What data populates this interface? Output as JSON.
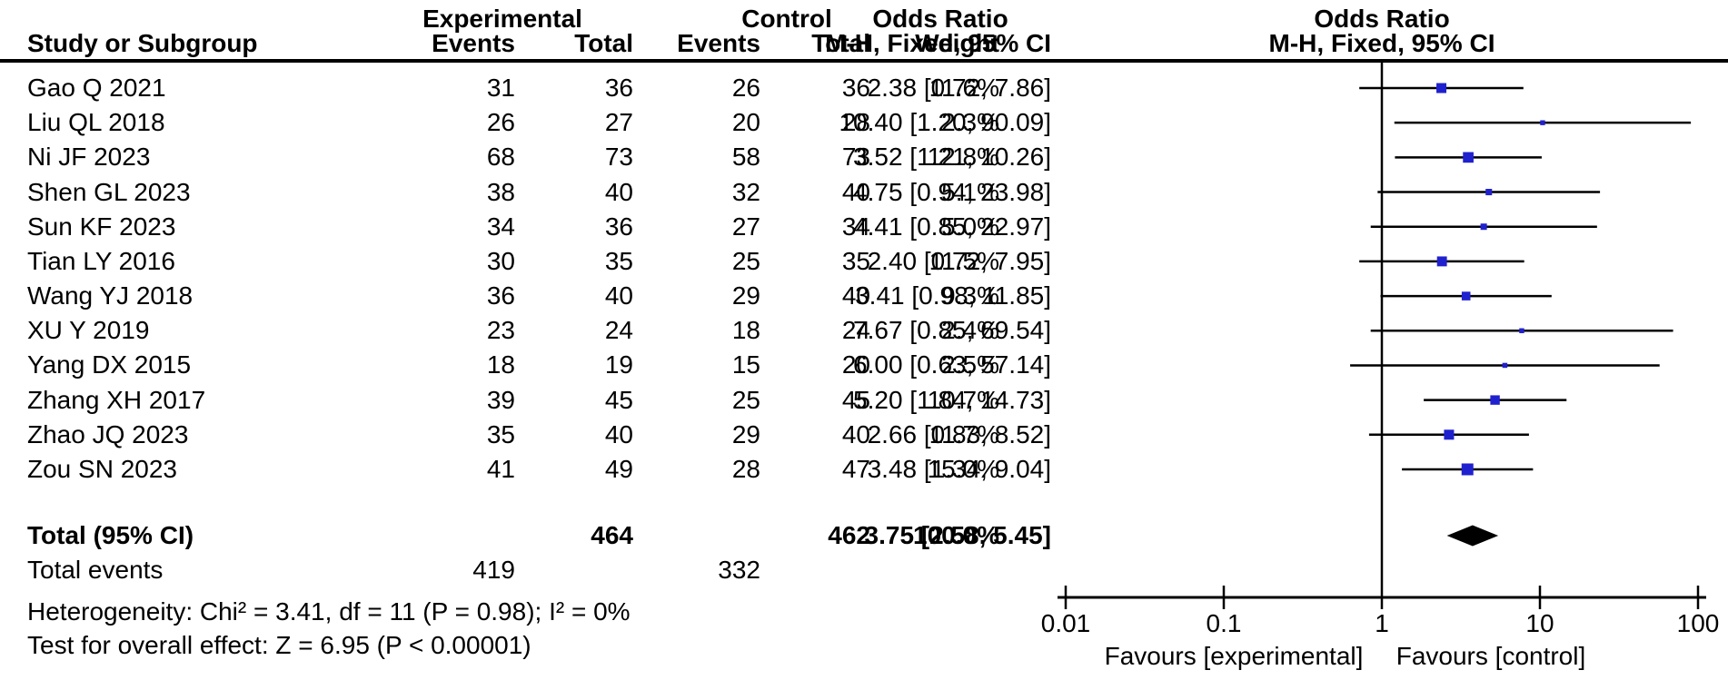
{
  "chart_data": {
    "type": "forest",
    "title": "Odds Ratio forest plot (M-H, Fixed, 95% CI)",
    "headers": {
      "study_col": "Study or Subgroup",
      "group_experimental": "Experimental",
      "group_control": "Control",
      "events": "Events",
      "total": "Total",
      "weight": "Weight",
      "or_title": "Odds Ratio",
      "or_subtitle": "M-H, Fixed, 95% CI"
    },
    "studies": [
      {
        "name": "Gao Q 2021",
        "exp_events": 31,
        "exp_total": 36,
        "ctl_events": 26,
        "ctl_total": 36,
        "weight_pct": 11.6,
        "weight_label": "11.6%",
        "or": 2.38,
        "ci_low": 0.72,
        "ci_high": 7.86,
        "or_ci_label": "2.38 [0.72, 7.86]"
      },
      {
        "name": "Liu QL 2018",
        "exp_events": 26,
        "exp_total": 27,
        "ctl_events": 20,
        "ctl_total": 28,
        "weight_pct": 2.3,
        "weight_label": "2.3%",
        "or": 10.4,
        "ci_low": 1.2,
        "ci_high": 90.09,
        "or_ci_label": "10.40 [1.20, 90.09]"
      },
      {
        "name": "Ni JF 2023",
        "exp_events": 68,
        "exp_total": 73,
        "ctl_events": 58,
        "ctl_total": 73,
        "weight_pct": 12.8,
        "weight_label": "12.8%",
        "or": 3.52,
        "ci_low": 1.21,
        "ci_high": 10.26,
        "or_ci_label": "3.52 [1.21, 10.26]"
      },
      {
        "name": "Shen GL 2023",
        "exp_events": 38,
        "exp_total": 40,
        "ctl_events": 32,
        "ctl_total": 40,
        "weight_pct": 5.1,
        "weight_label": "5.1%",
        "or": 4.75,
        "ci_low": 0.94,
        "ci_high": 23.98,
        "or_ci_label": "4.75 [0.94, 23.98]"
      },
      {
        "name": "Sun KF 2023",
        "exp_events": 34,
        "exp_total": 36,
        "ctl_events": 27,
        "ctl_total": 34,
        "weight_pct": 5.0,
        "weight_label": "5.0%",
        "or": 4.41,
        "ci_low": 0.85,
        "ci_high": 22.97,
        "or_ci_label": "4.41 [0.85, 22.97]"
      },
      {
        "name": "Tian LY 2016",
        "exp_events": 30,
        "exp_total": 35,
        "ctl_events": 25,
        "ctl_total": 35,
        "weight_pct": 11.5,
        "weight_label": "11.5%",
        "or": 2.4,
        "ci_low": 0.72,
        "ci_high": 7.95,
        "or_ci_label": "2.40 [0.72, 7.95]"
      },
      {
        "name": "Wang YJ 2018",
        "exp_events": 36,
        "exp_total": 40,
        "ctl_events": 29,
        "ctl_total": 40,
        "weight_pct": 9.3,
        "weight_label": "9.3%",
        "or": 3.41,
        "ci_low": 0.98,
        "ci_high": 11.85,
        "or_ci_label": "3.41 [0.98, 11.85]"
      },
      {
        "name": "XU Y 2019",
        "exp_events": 23,
        "exp_total": 24,
        "ctl_events": 18,
        "ctl_total": 24,
        "weight_pct": 2.4,
        "weight_label": "2.4%",
        "or": 7.67,
        "ci_low": 0.85,
        "ci_high": 69.54,
        "or_ci_label": "7.67 [0.85, 69.54]"
      },
      {
        "name": "Yang DX 2015",
        "exp_events": 18,
        "exp_total": 19,
        "ctl_events": 15,
        "ctl_total": 20,
        "weight_pct": 2.5,
        "weight_label": "2.5%",
        "or": 6.0,
        "ci_low": 0.63,
        "ci_high": 57.14,
        "or_ci_label": "6.00 [0.63, 57.14]"
      },
      {
        "name": "Zhang XH 2017",
        "exp_events": 39,
        "exp_total": 45,
        "ctl_events": 25,
        "ctl_total": 45,
        "weight_pct": 10.7,
        "weight_label": "10.7%",
        "or": 5.2,
        "ci_low": 1.84,
        "ci_high": 14.73,
        "or_ci_label": "5.20 [1.84, 14.73]"
      },
      {
        "name": "Zhao JQ 2023",
        "exp_events": 35,
        "exp_total": 40,
        "ctl_events": 29,
        "ctl_total": 40,
        "weight_pct": 11.7,
        "weight_label": "11.7%",
        "or": 2.66,
        "ci_low": 0.83,
        "ci_high": 8.52,
        "or_ci_label": "2.66 [0.83, 8.52]"
      },
      {
        "name": "Zou SN 2023",
        "exp_events": 41,
        "exp_total": 49,
        "ctl_events": 28,
        "ctl_total": 47,
        "weight_pct": 15.0,
        "weight_label": "15.0%",
        "or": 3.48,
        "ci_low": 1.34,
        "ci_high": 9.04,
        "or_ci_label": "3.48 [1.34, 9.04]"
      }
    ],
    "summary": {
      "total_label": "Total (95% CI)",
      "exp_total": "464",
      "ctl_total": "462",
      "weight_label": "100.0%",
      "or": 3.75,
      "ci_low": 2.58,
      "ci_high": 5.45,
      "or_ci_label": "3.75 [2.58, 5.45]"
    },
    "total_events": {
      "label": "Total events",
      "experimental": "419",
      "control": "332"
    },
    "footnotes": {
      "heterogeneity": "Heterogeneity: Chi² = 3.41, df = 11 (P = 0.98); I² = 0%",
      "overall_effect": "Test for overall effect: Z = 6.95 (P < 0.00001)"
    },
    "axis": {
      "scale": "log",
      "min": 0.01,
      "max": 100,
      "ticks": [
        0.01,
        0.1,
        1,
        10,
        100
      ],
      "tick_labels": [
        "0.01",
        "0.1",
        "1",
        "10",
        "100"
      ],
      "reference_value": 1
    },
    "favours": {
      "left": "Favours [experimental]",
      "right": "Favours [control]"
    },
    "colors": {
      "marker_blue": "#2021CE",
      "line_black": "#000000"
    }
  }
}
